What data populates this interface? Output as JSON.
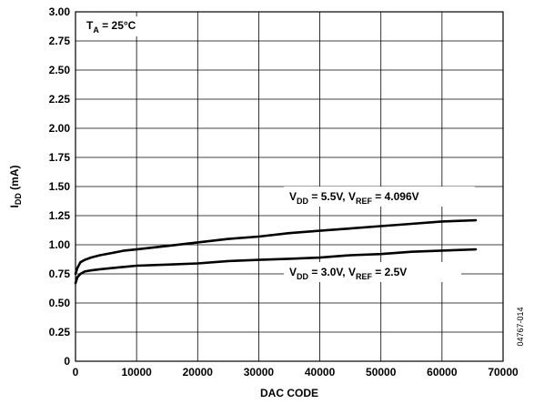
{
  "chart_data": {
    "type": "line",
    "title": "",
    "xlabel": "DAC CODE",
    "ylabel": "I_DD (mA)",
    "ylabel_main": "I",
    "ylabel_sub": "DD",
    "ylabel_rest": " (mA)",
    "xlim": [
      0,
      70000
    ],
    "ylim": [
      0,
      3.0
    ],
    "x_ticks": [
      "0",
      "10000",
      "20000",
      "30000",
      "40000",
      "50000",
      "60000",
      "70000"
    ],
    "y_ticks": [
      "0",
      "0.25",
      "0.50",
      "0.75",
      "1.00",
      "1.25",
      "1.50",
      "1.75",
      "2.00",
      "2.25",
      "2.50",
      "2.75",
      "3.00"
    ],
    "grid": true,
    "legend": "none",
    "series": [
      {
        "name": "V_DD = 5.5V, V_REF = 4.096V",
        "x": [
          0,
          300,
          800,
          1500,
          2500,
          4000,
          6000,
          8000,
          10000,
          15000,
          20000,
          25000,
          30000,
          35000,
          40000,
          45000,
          50000,
          55000,
          60000,
          65535
        ],
        "y": [
          0.75,
          0.8,
          0.85,
          0.87,
          0.89,
          0.91,
          0.93,
          0.95,
          0.96,
          0.99,
          1.02,
          1.05,
          1.07,
          1.1,
          1.12,
          1.14,
          1.16,
          1.18,
          1.2,
          1.21
        ]
      },
      {
        "name": "V_DD = 3.0V, V_REF = 2.5V",
        "x": [
          0,
          300,
          800,
          1500,
          2500,
          4000,
          6000,
          8000,
          10000,
          15000,
          20000,
          25000,
          30000,
          35000,
          40000,
          45000,
          50000,
          55000,
          60000,
          65535
        ],
        "y": [
          0.67,
          0.72,
          0.75,
          0.77,
          0.78,
          0.79,
          0.8,
          0.81,
          0.82,
          0.83,
          0.84,
          0.86,
          0.87,
          0.88,
          0.89,
          0.91,
          0.92,
          0.94,
          0.95,
          0.96
        ]
      }
    ],
    "annotations": {
      "temp": {
        "main": "T",
        "sub": "A",
        "rest": " = 25°C"
      },
      "curve_high": [
        {
          "t": "V",
          "sub": false
        },
        {
          "t": "DD",
          "sub": true
        },
        {
          "t": " = 5.5V, V",
          "sub": false
        },
        {
          "t": "REF",
          "sub": true
        },
        {
          "t": " = 4.096V",
          "sub": false
        }
      ],
      "curve_low": [
        {
          "t": "V",
          "sub": false
        },
        {
          "t": "DD",
          "sub": true
        },
        {
          "t": " = 3.0V, V",
          "sub": false
        },
        {
          "t": "REF",
          "sub": true
        },
        {
          "t": " = 2.5V",
          "sub": false
        }
      ]
    },
    "watermark": "04767-014",
    "colors": {
      "line": "#000000",
      "grid": "#000000",
      "background": "#ffffff"
    }
  }
}
